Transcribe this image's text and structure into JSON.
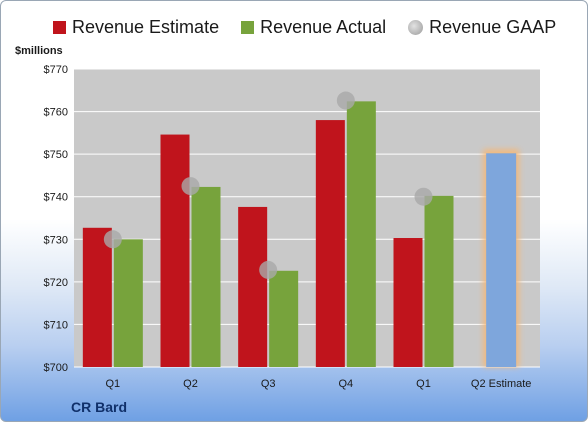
{
  "chart_data": {
    "type": "bar",
    "title": "",
    "xlabel": "",
    "ylabel": "$millions",
    "ylim": [
      700,
      770
    ],
    "yticks": [
      700,
      710,
      720,
      730,
      740,
      750,
      760,
      770
    ],
    "ytick_labels": [
      "$700",
      "$710",
      "$720",
      "$730",
      "$740",
      "$750",
      "$760",
      "$770"
    ],
    "categories": [
      "Q1",
      "Q2",
      "Q3",
      "Q4",
      "Q1",
      "Q2 Estimate"
    ],
    "series": [
      {
        "name": "Revenue Estimate",
        "type": "bar",
        "color": "#c0141c",
        "values": [
          732.7,
          754.6,
          737.6,
          758.0,
          730.3,
          null
        ]
      },
      {
        "name": "Revenue Actual",
        "type": "bar",
        "color": "#77a33c",
        "values": [
          730.0,
          742.3,
          722.6,
          762.4,
          740.2,
          750.2
        ]
      },
      {
        "name": "Revenue GAAP",
        "type": "marker",
        "color": "#a9a9a9",
        "values": [
          730.0,
          742.5,
          722.8,
          762.6,
          740.0,
          null
        ]
      }
    ],
    "highlight": {
      "category_index": 5,
      "fill": "#7ea6dc",
      "glow": "#f5b877"
    },
    "grid": true,
    "legend_position": "top"
  },
  "colors": {
    "plot_bg": "#c9c9c9",
    "grid": "#ffffff",
    "axis_text": "#1a1a1a"
  },
  "company": "CR Bard"
}
